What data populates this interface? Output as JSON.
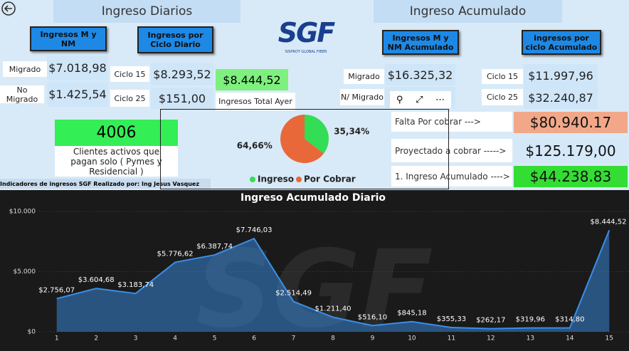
{
  "header": {
    "diarios": "Ingreso Diarios",
    "acumulado": "Ingreso Acumulado"
  },
  "logo": {
    "text": "SGF",
    "subtitle": "SISPROT GLOBAL FIBER"
  },
  "diarios": {
    "mynm": {
      "title": "Ingresos M y NM",
      "rows": [
        [
          "Migrado",
          "$7.018,98"
        ],
        [
          "No Migrado",
          "$1.425,54"
        ]
      ]
    },
    "ciclo": {
      "title": "Ingresos por Ciclo Diario",
      "rows": [
        [
          "Ciclo 15",
          "$8.293,52"
        ],
        [
          "Ciclo 25",
          "$151,00"
        ]
      ]
    },
    "total": {
      "value": "$8.444,52",
      "label": "Ingresos Total Ayer"
    }
  },
  "acumulado": {
    "mynm": {
      "title": "Ingresos M y NM Acumulado",
      "rows": [
        [
          "Migrado",
          "$16.325,32"
        ],
        [
          "N/ Migrado"
        ]
      ]
    },
    "ciclo": {
      "title": "ingresos por ciclo Acumulado",
      "rows": [
        [
          "Ciclo 15",
          "$11.997,96"
        ],
        [
          "Ciclo 25",
          "$32.240,87"
        ]
      ]
    }
  },
  "clientes": {
    "value": "4006",
    "label": "Clientes activos que pagan solo ( Pymes y Residencial )"
  },
  "resumen": [
    [
      "Falta Por cobrar --->",
      "$80.940.17"
    ],
    [
      "Proyectado a cobrar ----->",
      "$125.179,00"
    ],
    [
      "1. Ingreso Acumulado ---->",
      "$44.238.83"
    ]
  ],
  "footer": "Indicadores de ingresos SGF Realizado por: Ing Jesus Vasquez",
  "chart_data": [
    {
      "type": "pie",
      "categories": [
        "Ingreso",
        "Por Cobrar"
      ],
      "values": [
        35.34,
        64.66
      ],
      "value_labels": [
        "35,34%",
        "64,66%"
      ],
      "colors": [
        "#33dd55",
        "#e8683a"
      ]
    },
    {
      "type": "area",
      "title": "Ingreso Acumulado Diario",
      "x": [
        1,
        2,
        3,
        4,
        5,
        6,
        7,
        8,
        9,
        10,
        11,
        12,
        13,
        14,
        15
      ],
      "values": [
        2756.07,
        3604.68,
        3183.74,
        5776.62,
        6387.74,
        7746.03,
        2514.49,
        1211.4,
        516.1,
        845.18,
        355.33,
        262.17,
        319.96,
        314.8,
        8444.52
      ],
      "value_labels": [
        "$2.756,07",
        "$3.604,68",
        "$3.183,74",
        "$5.776,62",
        "$6.387,74",
        "$7.746,03",
        "$2.514,49",
        "$1.211,40",
        "$516,10",
        "$845,18",
        "$355,33",
        "$262,17",
        "$319,96",
        "$314,80",
        "$8.444,52"
      ],
      "color": "#3a8ee6",
      "xlim": [
        0.5,
        15.5
      ],
      "xticks": [
        1,
        2,
        3,
        4,
        5,
        6,
        7,
        8,
        9,
        10,
        11,
        12,
        13,
        14,
        15
      ],
      "ylim": [
        0,
        10000
      ],
      "yticks": [
        {
          "value": 0,
          "label": "$0"
        },
        {
          "value": 5000,
          "label": "$5.000"
        },
        {
          "value": 10000,
          "label": "$10.000"
        }
      ],
      "grid": true
    }
  ]
}
